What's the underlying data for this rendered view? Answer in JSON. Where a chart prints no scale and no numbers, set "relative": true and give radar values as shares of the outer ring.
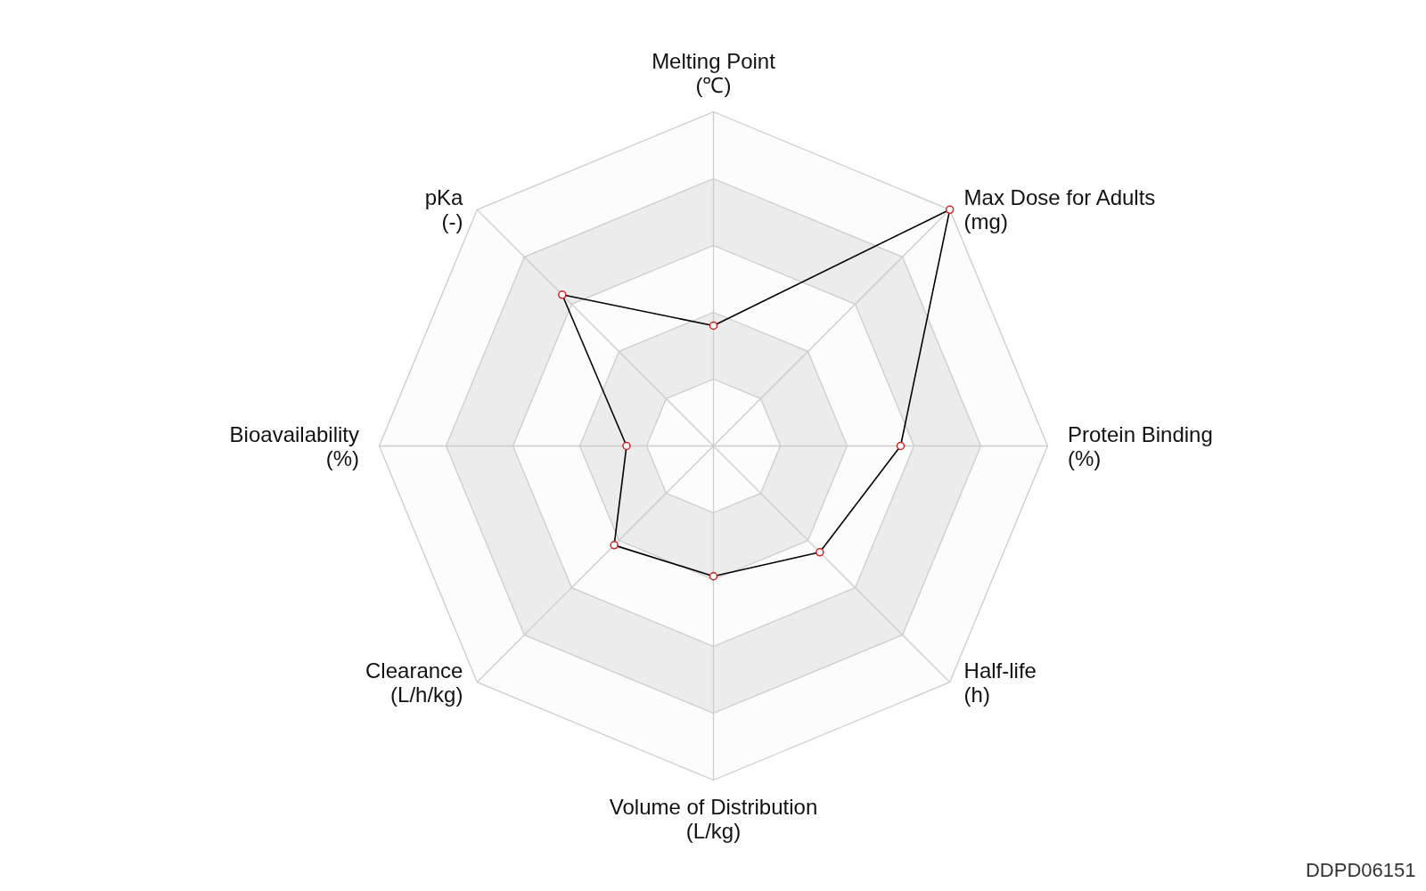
{
  "chart_data": {
    "type": "radar",
    "relative": true,
    "categories": [
      "Melting Point\n(℃)",
      "Max Dose for Adults\n(mg)",
      "Protein Binding\n(%)",
      "Half-life\n(h)",
      "Volume of Distribution\n(L/kg)",
      "Clearance\n(L/h/kg)",
      "Bioavailability\n(%)",
      "pKa\n(-)"
    ],
    "series": [
      {
        "color": "#000000",
        "values": [
          0.36,
          1.0,
          0.56,
          0.45,
          0.39,
          0.42,
          0.26,
          0.64
        ]
      }
    ],
    "marker": "circle",
    "grid": true,
    "annotations": [
      "DDPD06151"
    ]
  }
}
